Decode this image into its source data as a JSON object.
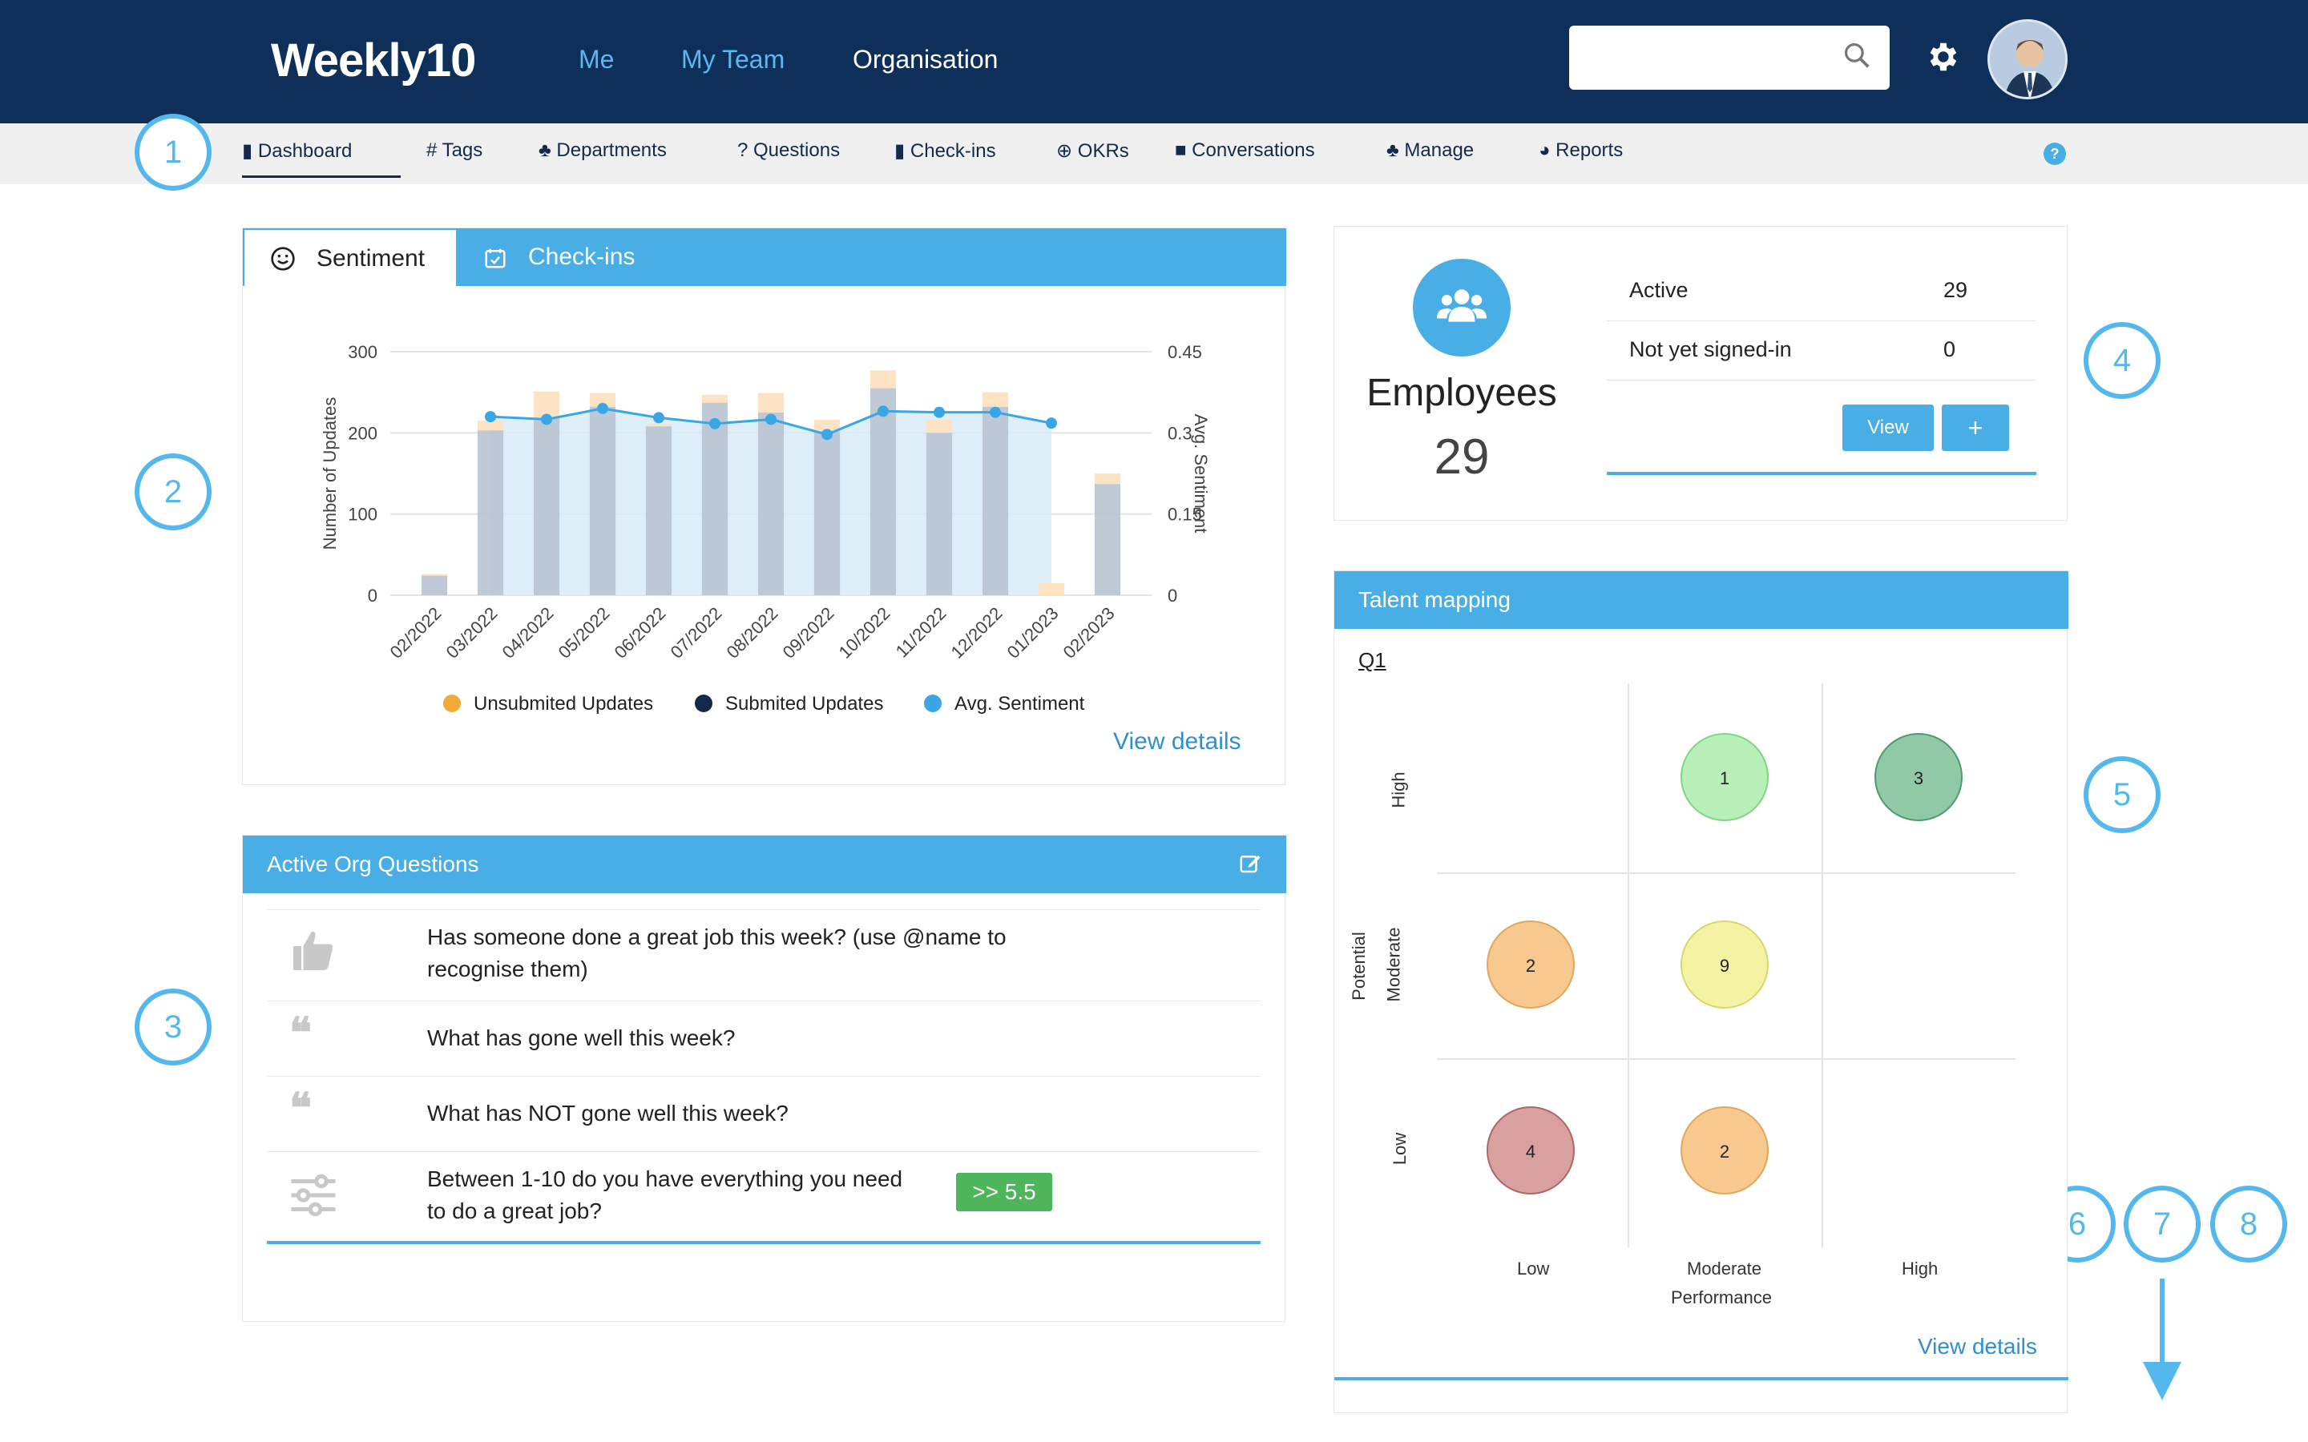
{
  "header": {
    "logo": "Weekly10",
    "nav": [
      "Me",
      "My Team",
      "Organisation"
    ],
    "search_value": ""
  },
  "subnav": {
    "items": [
      "Dashboard",
      "# Tags",
      "Departments",
      "? Questions",
      "Check-ins",
      "OKRs",
      "Conversations",
      "Manage",
      "Reports"
    ],
    "help": "?"
  },
  "callouts": [
    "1",
    "2",
    "3",
    "4",
    "5",
    "6",
    "7",
    "8"
  ],
  "sentiment_card": {
    "tabs": [
      "Sentiment",
      "Check-ins"
    ],
    "view_details": "View details"
  },
  "chart_data": {
    "type": "bar",
    "categories": [
      "02/2022",
      "03/2022",
      "04/2022",
      "05/2022",
      "06/2022",
      "07/2022",
      "08/2022",
      "09/2022",
      "10/2022",
      "11/2022",
      "12/2022",
      "01/2023",
      "02/2023"
    ],
    "ylabel": "Number of Updates",
    "y2label": "Avg. Sentiment",
    "ylim": [
      0,
      300
    ],
    "y2lim": [
      0,
      0.45
    ],
    "yticks": [
      "300",
      "200",
      "100",
      "0"
    ],
    "y2ticks": [
      "0.45",
      "0.3",
      "0.15",
      "0"
    ],
    "series": [
      {
        "name": "Unsubmited Updates",
        "color": "#f2a93b",
        "values": [
          2,
          12,
          33,
          17,
          3,
          10,
          24,
          14,
          22,
          16,
          18,
          15,
          13
        ]
      },
      {
        "name": "Submited Updates",
        "color": "#13294b",
        "values": [
          24,
          203,
          218,
          232,
          208,
          237,
          225,
          202,
          255,
          200,
          232,
          0,
          137
        ]
      },
      {
        "name": "Avg. Sentiment",
        "color": "#3aa6e6",
        "values": [
          null,
          0.33,
          0.325,
          0.345,
          0.328,
          0.317,
          0.325,
          0.297,
          0.34,
          0.338,
          0.338,
          0.318,
          null
        ]
      }
    ],
    "legend_position": "bottom",
    "grid": true
  },
  "questions_card": {
    "title": "Active Org Questions",
    "questions": [
      {
        "text_line1": "Has someone done a great job this week? (use @name to",
        "text_line2": "recognise them)",
        "icon": "thumbs-up-icon"
      },
      {
        "text_line1": "What has gone well this week?",
        "text_line2": "",
        "icon": "quote-icon"
      },
      {
        "text_line1": "What has NOT gone well this week?",
        "text_line2": "",
        "icon": "quote-icon"
      },
      {
        "text_line1": "Between 1-10 do you have everything you need",
        "text_line2": "to do a great job?",
        "icon": "sliders-icon",
        "badge": ">> 5.5"
      }
    ]
  },
  "employees_card": {
    "title": "Employees",
    "count": "29",
    "rows": [
      {
        "label": "Active",
        "value": "29"
      },
      {
        "label": "Not yet signed-in",
        "value": "0"
      }
    ],
    "view_button": "View",
    "add_button": "+"
  },
  "talent_card": {
    "title": "Talent mapping",
    "period": "Q1",
    "y_axis_title": "Potential",
    "y_levels": [
      "High",
      "Moderate",
      "Low"
    ],
    "x_axis_title": "Performance",
    "x_levels": [
      "Low",
      "Moderate",
      "High"
    ],
    "cells": [
      {
        "potential": "High",
        "performance": "Moderate",
        "count": "1",
        "color": "#b9f0b9"
      },
      {
        "potential": "High",
        "performance": "High",
        "count": "3",
        "color": "#8fc9a5"
      },
      {
        "potential": "Moderate",
        "performance": "Low",
        "count": "2",
        "color": "#f7c98f"
      },
      {
        "potential": "Moderate",
        "performance": "Moderate",
        "count": "9",
        "color": "#f3f3a3"
      },
      {
        "potential": "Low",
        "performance": "Low",
        "count": "4",
        "color": "#d9a0a0"
      },
      {
        "potential": "Low",
        "performance": "Moderate",
        "count": "2",
        "color": "#f7c98f"
      }
    ],
    "view_details": "View details"
  }
}
